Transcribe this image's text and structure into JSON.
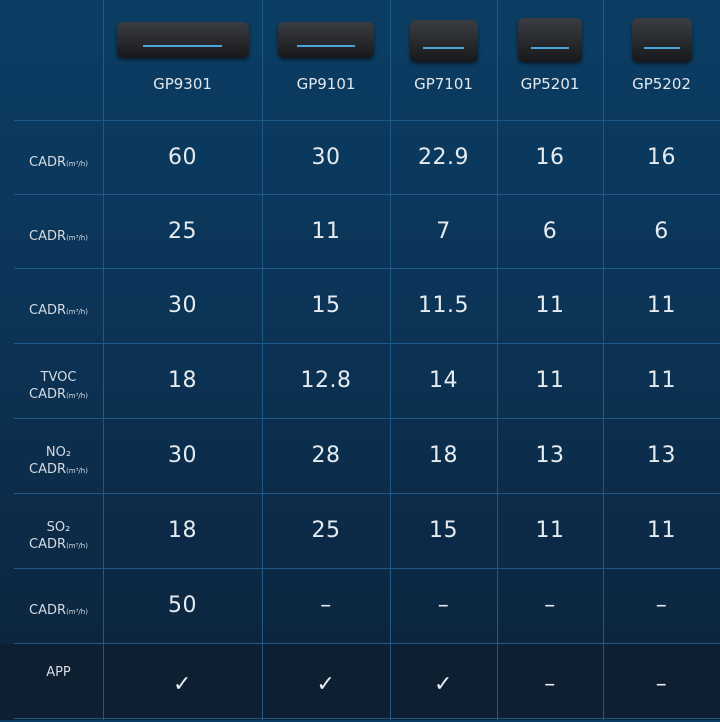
{
  "products": [
    {
      "model": "GP9301",
      "image": "air-purifier-flat"
    },
    {
      "model": "GP9101",
      "image": "air-purifier-round"
    },
    {
      "model": "GP7101",
      "image": "air-purifier-cube"
    },
    {
      "model": "GP5201",
      "image": "air-purifier-compact"
    },
    {
      "model": "GP5202",
      "image": "air-purifier-compact"
    }
  ],
  "rows": [
    {
      "label_top": "",
      "label": "CADR",
      "unit": "(m³/h)",
      "values": [
        "60",
        "30",
        "22.9",
        "16",
        "16"
      ]
    },
    {
      "label_top": "",
      "label": "CADR",
      "unit": "(m³/h)",
      "values": [
        "25",
        "11",
        "7",
        "6",
        "6"
      ]
    },
    {
      "label_top": "",
      "label": "CADR",
      "unit": "(m³/h)",
      "values": [
        "30",
        "15",
        "11.5",
        "11",
        "11"
      ]
    },
    {
      "label_top": "TVOC",
      "label": "CADR",
      "unit": "(m³/h)",
      "values": [
        "18",
        "12.8",
        "14",
        "11",
        "11"
      ]
    },
    {
      "label_top": "NO₂",
      "label": "CADR",
      "unit": "(m³/h)",
      "values": [
        "30",
        "28",
        "18",
        "13",
        "13"
      ]
    },
    {
      "label_top": "SO₂",
      "label": "CADR",
      "unit": "(m³/h)",
      "values": [
        "18",
        "25",
        "15",
        "11",
        "11"
      ]
    },
    {
      "label_top": "",
      "label": "CADR",
      "unit": "(m³/h)",
      "values": [
        "50",
        "–",
        "–",
        "–",
        "–"
      ]
    },
    {
      "label_top": "",
      "label": "APP",
      "unit": "",
      "values": [
        "✓",
        "✓",
        "✓",
        "–",
        "–"
      ]
    }
  ],
  "colors": {
    "background": "#0b3558",
    "grid_line": "#1d5a88",
    "app_row": "#0d1f30",
    "accent": "#4aa4d8"
  }
}
